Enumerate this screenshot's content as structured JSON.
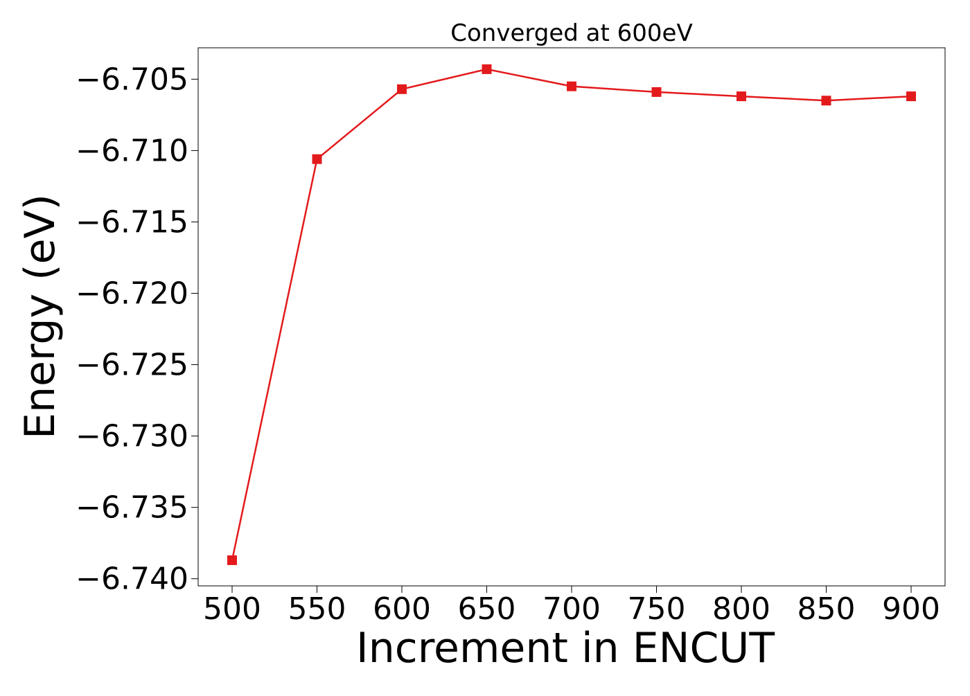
{
  "chart_data": {
    "type": "line",
    "title": "Converged at 600eV",
    "xlabel": "Increment in ENCUT",
    "ylabel": "Energy (eV)",
    "x": [
      500,
      550,
      600,
      650,
      700,
      750,
      800,
      850,
      900
    ],
    "series": [
      {
        "values": [
          -6.7387,
          -6.7106,
          -6.7057,
          -6.7043,
          -6.7055,
          -6.7059,
          -6.7062,
          -6.7065,
          -6.7062
        ],
        "color": "#e31a1c",
        "marker": "square"
      }
    ],
    "xlim": [
      480,
      920
    ],
    "ylim": [
      -6.7405,
      -6.7028
    ],
    "xticks": [
      500,
      550,
      600,
      650,
      700,
      750,
      800,
      850,
      900
    ],
    "xtick_labels": [
      "500",
      "550",
      "600",
      "650",
      "700",
      "750",
      "800",
      "850",
      "900"
    ],
    "yticks": [
      -6.74,
      -6.735,
      -6.73,
      -6.725,
      -6.72,
      -6.715,
      -6.71,
      -6.705
    ],
    "ytick_labels": [
      "−6.740",
      "−6.735",
      "−6.730",
      "−6.725",
      "−6.720",
      "−6.715",
      "−6.710",
      "−6.705"
    ],
    "grid": false,
    "legend": "none"
  }
}
